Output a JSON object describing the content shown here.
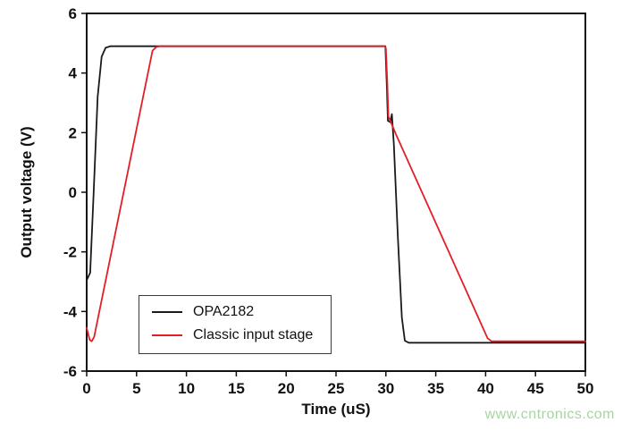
{
  "chart_data": {
    "type": "line",
    "title": "",
    "xlabel": "Time (uS)",
    "ylabel": "Output voltage (V)",
    "xlim": [
      0,
      50
    ],
    "ylim": [
      -6,
      6
    ],
    "xticks": [
      0,
      5,
      10,
      15,
      20,
      25,
      30,
      35,
      40,
      45,
      50
    ],
    "yticks": [
      -6,
      -4,
      -2,
      0,
      2,
      4,
      6
    ],
    "grid": false,
    "legend_position": "lower-left",
    "axis_color": "#111111",
    "series": [
      {
        "name": "OPA2182",
        "color": "#1a1a1a",
        "points": [
          [
            0,
            -2.95
          ],
          [
            0.35,
            -2.7
          ],
          [
            0.7,
            0.0
          ],
          [
            1.1,
            3.2
          ],
          [
            1.5,
            4.55
          ],
          [
            1.9,
            4.85
          ],
          [
            2.4,
            4.9
          ],
          [
            29.95,
            4.9
          ],
          [
            30.1,
            3.5
          ],
          [
            30.2,
            2.4
          ],
          [
            30.45,
            2.35
          ],
          [
            30.6,
            2.62
          ],
          [
            30.8,
            1.6
          ],
          [
            31.2,
            -1.5
          ],
          [
            31.6,
            -4.2
          ],
          [
            31.9,
            -4.98
          ],
          [
            32.3,
            -5.05
          ],
          [
            50,
            -5.05
          ]
        ]
      },
      {
        "name": "Classic input stage",
        "color": "#e21f26",
        "points": [
          [
            0,
            -4.55
          ],
          [
            0.3,
            -4.95
          ],
          [
            0.5,
            -5.0
          ],
          [
            0.75,
            -4.85
          ],
          [
            6.6,
            4.75
          ],
          [
            7.0,
            4.88
          ],
          [
            7.4,
            4.9
          ],
          [
            29.9,
            4.9
          ],
          [
            30.0,
            4.82
          ],
          [
            30.15,
            3.6
          ],
          [
            30.25,
            2.55
          ],
          [
            31.0,
            1.95
          ],
          [
            40.2,
            -4.9
          ],
          [
            40.6,
            -5.0
          ],
          [
            50,
            -5.0
          ]
        ]
      }
    ],
    "watermark": "www.cntronics.com"
  }
}
